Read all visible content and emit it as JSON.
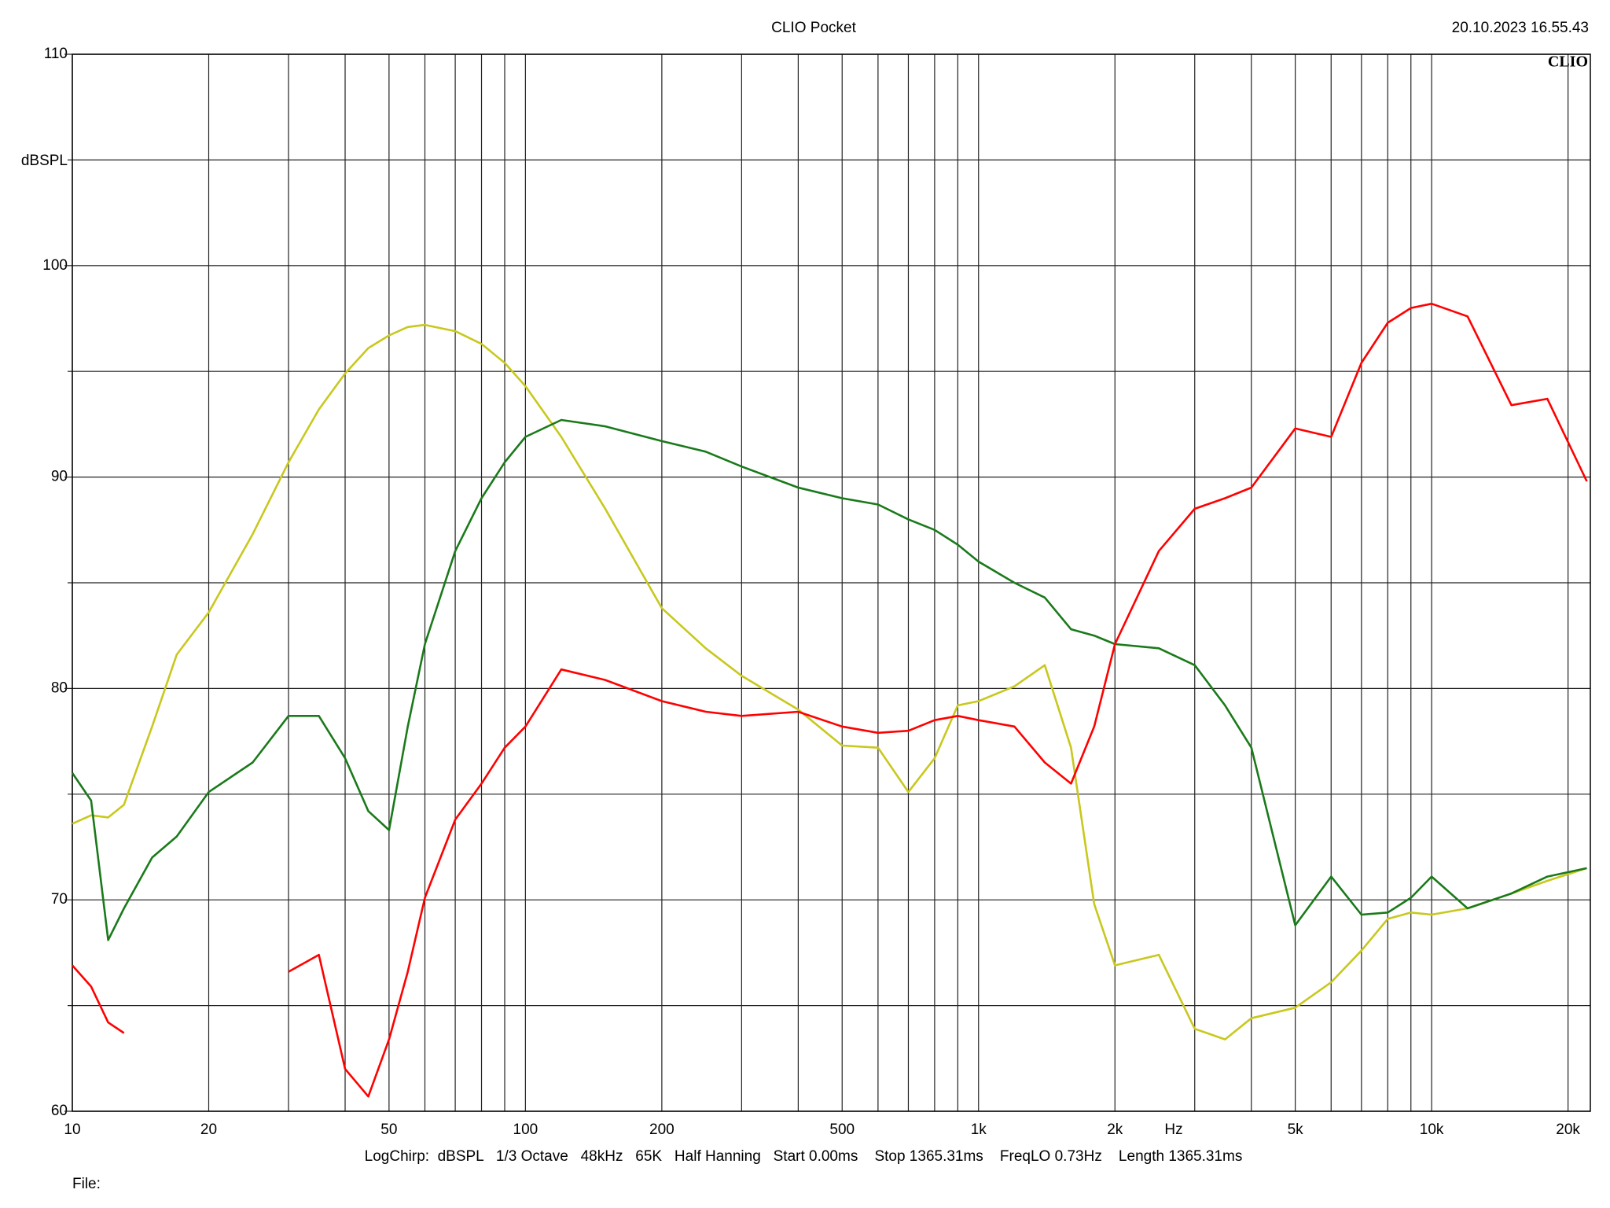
{
  "chart_data": {
    "type": "line",
    "title": "CLIO Pocket",
    "timestamp": "20.10.2023 16.55.43",
    "logo": "CLIO",
    "ylabel": "dBSPL",
    "xlabel": "Hz",
    "footer": "LogChirp:  dBSPL   1/3 Octave   48kHz   65K   Half Hanning   Start 0.00ms    Stop 1365.31ms    FreqLO 0.73Hz    Length 1365.31ms",
    "file_label": "File:",
    "xscale": "log",
    "grid": true,
    "xlim": [
      10,
      22400
    ],
    "ylim": [
      60,
      110
    ],
    "xticks": [
      10,
      20,
      50,
      100,
      200,
      500,
      {
        "value": 1000,
        "label": "1k"
      },
      {
        "value": 2000,
        "label": "2k"
      },
      {
        "value": 5000,
        "label": "5k"
      },
      {
        "value": 10000,
        "label": "10k"
      },
      {
        "value": 20000,
        "label": "20k"
      }
    ],
    "xminor": [
      30,
      40,
      60,
      70,
      80,
      90,
      300,
      400,
      600,
      700,
      800,
      900,
      3000,
      4000,
      6000,
      7000,
      8000,
      9000
    ],
    "yticks": [
      60,
      70,
      80,
      90,
      100,
      110
    ],
    "yminor": [
      65,
      75,
      85,
      95,
      105
    ],
    "x": [
      10,
      11,
      12,
      13,
      15,
      17,
      20,
      25,
      30,
      35,
      40,
      45,
      50,
      55,
      60,
      70,
      80,
      90,
      100,
      120,
      150,
      200,
      250,
      300,
      400,
      500,
      600,
      700,
      800,
      900,
      1000,
      1200,
      1400,
      1600,
      1800,
      2000,
      2500,
      3000,
      3500,
      4000,
      5000,
      6000,
      7000,
      8000,
      9000,
      10000,
      12000,
      15000,
      18000,
      22000
    ],
    "series": [
      {
        "color": "#c8c81e",
        "values": [
          73.6,
          74.0,
          73.9,
          74.5,
          78.2,
          81.6,
          83.6,
          87.3,
          90.7,
          93.2,
          94.9,
          96.1,
          96.7,
          97.1,
          97.2,
          96.9,
          96.3,
          95.4,
          94.3,
          91.9,
          88.5,
          83.8,
          81.9,
          80.6,
          79.0,
          77.3,
          77.2,
          75.1,
          76.7,
          79.2,
          79.4,
          80.1,
          81.1,
          77.2,
          69.8,
          66.9,
          67.4,
          63.9,
          63.4,
          64.4,
          64.9,
          66.1,
          67.6,
          69.1,
          69.4,
          69.3,
          69.6,
          70.3,
          70.9,
          71.5
        ]
      },
      {
        "color": "#1a7a1a",
        "values": [
          76.0,
          74.7,
          68.1,
          69.6,
          72.0,
          73.0,
          75.1,
          76.5,
          78.7,
          78.7,
          76.7,
          74.2,
          73.3,
          78.2,
          82.1,
          86.5,
          89.0,
          90.7,
          91.9,
          92.7,
          92.4,
          91.7,
          91.2,
          90.5,
          89.5,
          89.0,
          88.7,
          88.0,
          87.5,
          86.8,
          86.0,
          85.0,
          84.3,
          82.8,
          82.5,
          82.1,
          81.9,
          81.1,
          79.2,
          77.2,
          68.8,
          71.1,
          69.3,
          69.4,
          70.1,
          71.1,
          69.6,
          70.3,
          71.1,
          71.5
        ]
      },
      {
        "color": "#ff0000",
        "values": [
          66.9,
          65.9,
          64.2,
          63.7,
          null,
          null,
          null,
          null,
          66.6,
          67.4,
          62.0,
          60.7,
          63.4,
          66.6,
          70.1,
          73.8,
          75.5,
          77.2,
          78.2,
          80.9,
          80.4,
          79.4,
          78.9,
          78.7,
          78.9,
          78.2,
          77.9,
          78.0,
          78.5,
          78.7,
          78.5,
          78.2,
          76.5,
          75.5,
          78.2,
          82.1,
          86.5,
          88.5,
          89.0,
          89.5,
          92.3,
          91.9,
          95.4,
          97.3,
          98.0,
          98.2,
          97.6,
          93.4,
          93.7,
          89.8
        ]
      }
    ]
  }
}
